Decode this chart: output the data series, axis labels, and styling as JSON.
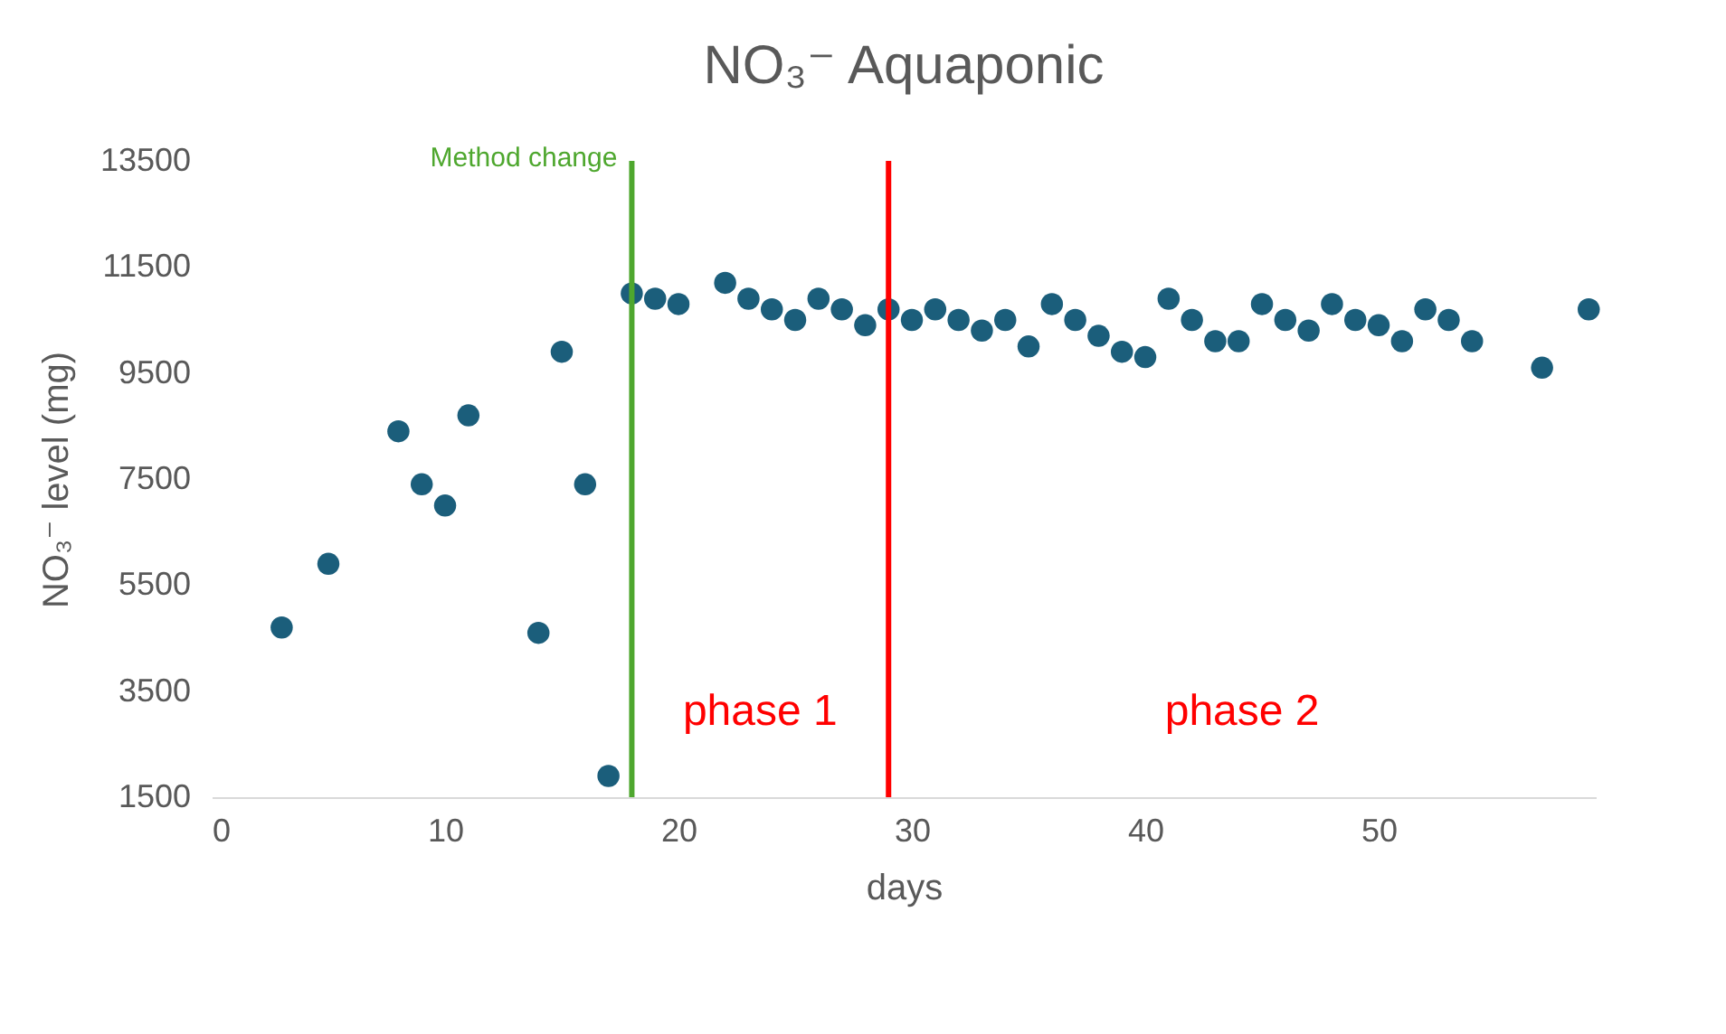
{
  "chart_data": {
    "type": "scatter",
    "title": "NO₃⁻  Aquaponic",
    "xlabel": "days",
    "ylabel": "NO₃⁻ level (mg)",
    "x": [
      3,
      5,
      8,
      9,
      10,
      11,
      14,
      15,
      16,
      17,
      18,
      19,
      20,
      22,
      23,
      24,
      25,
      26,
      27,
      28,
      29,
      30,
      31,
      32,
      33,
      34,
      35,
      36,
      37,
      38,
      39,
      40,
      41,
      42,
      43,
      44,
      45,
      46,
      47,
      48,
      49,
      50,
      51,
      52,
      53,
      54,
      57,
      59
    ],
    "series": [
      {
        "color": "#1b5e7b",
        "values": [
          4700,
          5900,
          8400,
          7400,
          7000,
          8700,
          4600,
          9900,
          7400,
          1900,
          11000,
          10900,
          10800,
          11200,
          10900,
          10700,
          10500,
          10900,
          10700,
          10400,
          10700,
          10500,
          10700,
          10500,
          10300,
          10500,
          10000,
          10800,
          10500,
          10200,
          9900,
          9800,
          10900,
          10500,
          10100,
          10100,
          10800,
          10500,
          10300,
          10800,
          10500,
          10400,
          10100,
          10700,
          10500,
          10100,
          9600,
          10700
        ]
      }
    ],
    "xlim": [
      0,
      59.3
    ],
    "ylim": [
      1500,
      13500
    ],
    "xticks": [
      0,
      10,
      20,
      30,
      40,
      50
    ],
    "yticks": [
      1500,
      3500,
      5500,
      7500,
      9500,
      11500,
      13500
    ],
    "grid": false,
    "legend": false,
    "marker": "circle",
    "ref_lines": [
      {
        "axis": "x",
        "value": 18,
        "label": "Method change",
        "color": "#4ea72e"
      },
      {
        "axis": "x",
        "value": 29,
        "color": "#ff0000"
      }
    ],
    "annotations": [
      "phase 1",
      "phase 2"
    ]
  }
}
